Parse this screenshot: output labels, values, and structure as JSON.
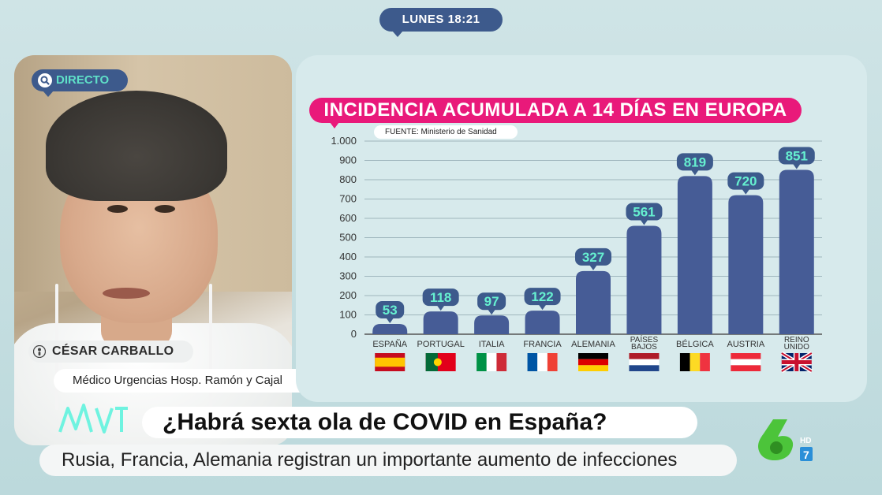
{
  "time_label": "LUNES 18:21",
  "live_label": "DIRECTO",
  "guest": {
    "name": "CÉSAR CARBALLO",
    "role": "Médico Urgencias Hosp. Ramón y Cajal"
  },
  "chart_data": {
    "type": "bar",
    "title": "INCIDENCIA ACUMULADA A 14 DÍAS EN EUROPA",
    "source": "FUENTE: Ministerio de Sanidad",
    "categories": [
      "ESPAÑA",
      "PORTUGAL",
      "ITALIA",
      "FRANCIA",
      "ALEMANIA",
      "PAÍSES BAJOS",
      "BÉLGICA",
      "AUSTRIA",
      "REINO UNIDO"
    ],
    "category_lines": [
      [
        "ESPAÑA"
      ],
      [
        "PORTUGAL"
      ],
      [
        "ITALIA"
      ],
      [
        "FRANCIA"
      ],
      [
        "ALEMANIA"
      ],
      [
        "PAÍSES",
        "BAJOS"
      ],
      [
        "BÉLGICA"
      ],
      [
        "AUSTRIA"
      ],
      [
        "REINO",
        "UNIDO"
      ]
    ],
    "values": [
      53,
      118,
      97,
      122,
      327,
      561,
      819,
      720,
      851
    ],
    "ylim": [
      0,
      1000
    ],
    "yticks": [
      0,
      100,
      200,
      300,
      400,
      500,
      600,
      700,
      800,
      900,
      1000
    ],
    "ytick_labels": [
      "0",
      "100",
      "200",
      "300",
      "400",
      "500",
      "600",
      "700",
      "800",
      "900",
      "1.000"
    ],
    "grid": true,
    "colors": {
      "bar": "#465c96",
      "value_label_bg": "#3d5a8c",
      "value_label_text": "#66f0d0",
      "title_bg": "#e9197a"
    }
  },
  "headline": "¿Habrá sexta ola de COVID en España?",
  "subline": "Rusia, Francia, Alemania registran un importante aumento de infecciones",
  "logos": {
    "program": "MVT",
    "channel_hd": "HD",
    "channel_number": "7"
  }
}
